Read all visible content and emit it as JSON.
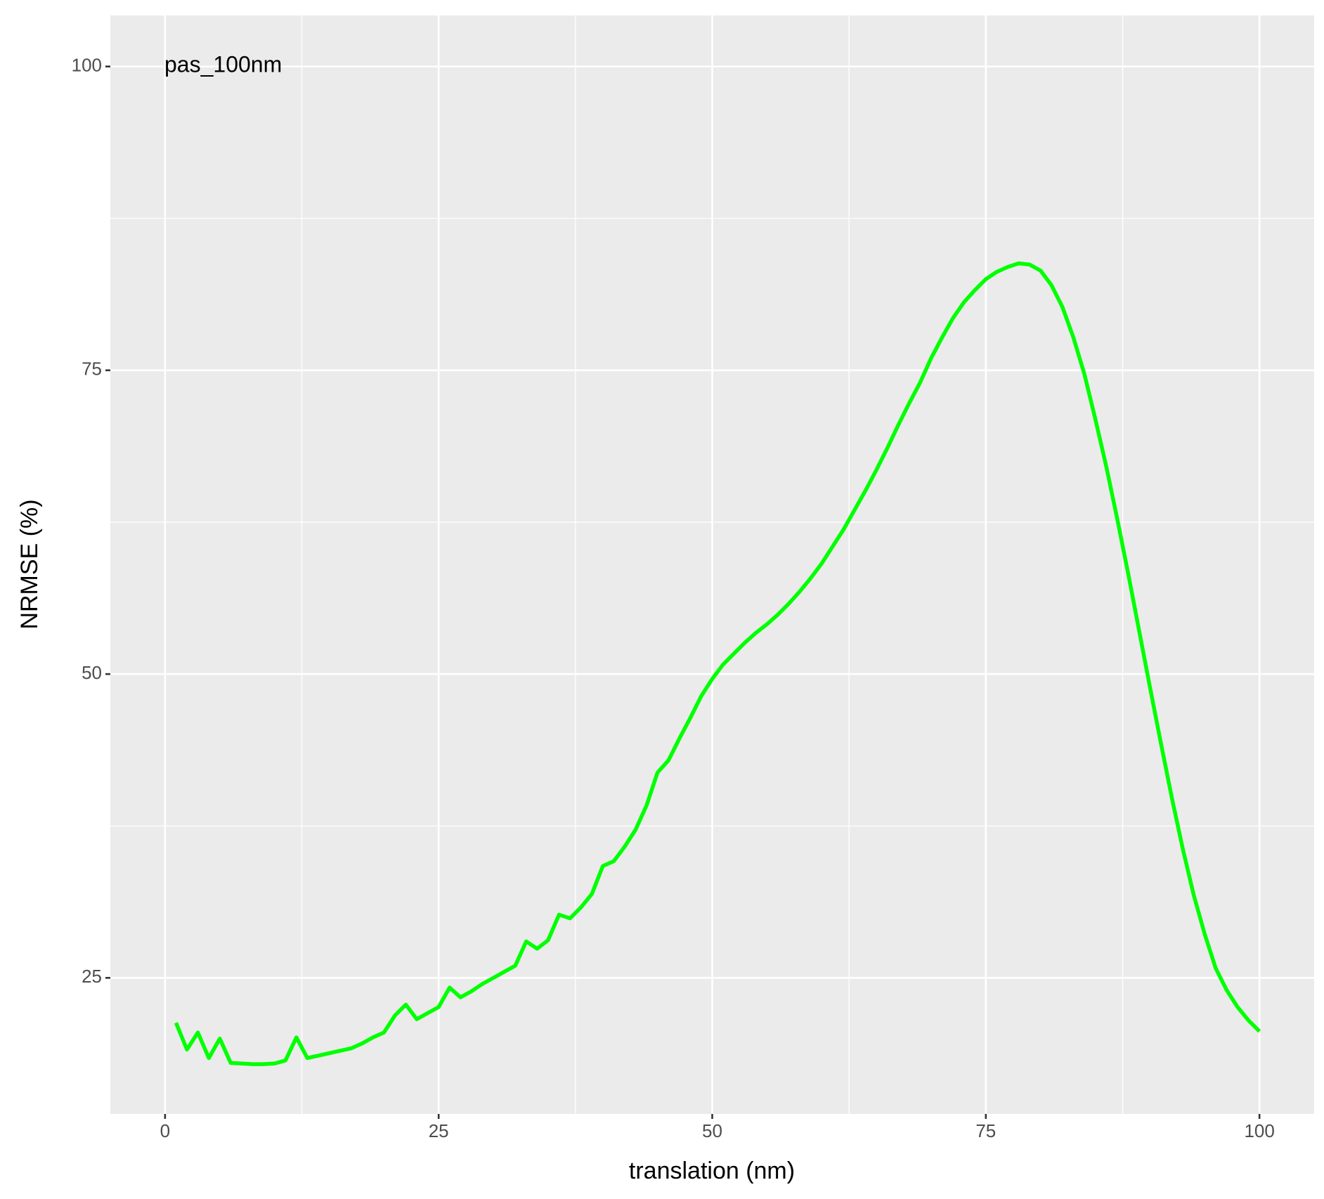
{
  "chart_data": {
    "type": "line",
    "annotation": "pas_100nm",
    "xlabel": "translation (nm)",
    "ylabel": "NRMSE (%)",
    "x": [
      1,
      2,
      3,
      4,
      5,
      6,
      7,
      8,
      9,
      10,
      11,
      12,
      13,
      14,
      15,
      16,
      17,
      18,
      19,
      20,
      21,
      22,
      23,
      24,
      25,
      26,
      27,
      28,
      29,
      30,
      31,
      32,
      33,
      34,
      35,
      36,
      37,
      38,
      39,
      40,
      41,
      42,
      43,
      44,
      45,
      46,
      47,
      48,
      49,
      50,
      51,
      52,
      53,
      54,
      55,
      56,
      57,
      58,
      59,
      60,
      61,
      62,
      63,
      64,
      65,
      66,
      67,
      68,
      69,
      70,
      71,
      72,
      73,
      74,
      75,
      76,
      77,
      78,
      79,
      80,
      81,
      82,
      83,
      84,
      85,
      86,
      87,
      88,
      89,
      90,
      91,
      92,
      93,
      94,
      95,
      96,
      97,
      98,
      99,
      100
    ],
    "series": [
      {
        "color": "#00ff00",
        "values": [
          21.3,
          19.1,
          20.5,
          18.4,
          20.0,
          18.0,
          17.95,
          17.9,
          17.9,
          17.95,
          18.2,
          20.1,
          18.4,
          18.6,
          18.8,
          19.0,
          19.2,
          19.6,
          20.1,
          20.5,
          21.9,
          22.8,
          21.6,
          22.1,
          22.6,
          24.2,
          23.4,
          23.9,
          24.5,
          25.0,
          25.5,
          26.0,
          28.0,
          27.4,
          28.1,
          30.2,
          29.9,
          30.8,
          31.9,
          34.2,
          34.6,
          35.8,
          37.2,
          39.2,
          41.9,
          42.9,
          44.7,
          46.4,
          48.2,
          49.6,
          50.8,
          51.7,
          52.6,
          53.4,
          54.1,
          54.9,
          55.8,
          56.8,
          57.9,
          59.1,
          60.5,
          61.9,
          63.5,
          65.1,
          66.8,
          68.6,
          70.5,
          72.3,
          74.0,
          76.0,
          77.7,
          79.3,
          80.6,
          81.6,
          82.5,
          83.1,
          83.5,
          83.8,
          83.7,
          83.2,
          82.0,
          80.2,
          77.7,
          74.7,
          71.0,
          67.1,
          62.8,
          58.3,
          53.6,
          48.9,
          44.3,
          39.8,
          35.6,
          31.8,
          28.6,
          25.8,
          24.0,
          22.6,
          21.5,
          20.6
        ]
      }
    ],
    "xlim": [
      -5,
      105
    ],
    "ylim": [
      13.8,
      104.2
    ],
    "xticks": [
      0,
      25,
      50,
      75,
      100
    ],
    "yticks": [
      25,
      50,
      75,
      100
    ],
    "minor_xticks": [
      12.5,
      37.5,
      62.5,
      87.5
    ],
    "minor_yticks": [
      37.5,
      62.5,
      87.5
    ],
    "grid": true
  }
}
